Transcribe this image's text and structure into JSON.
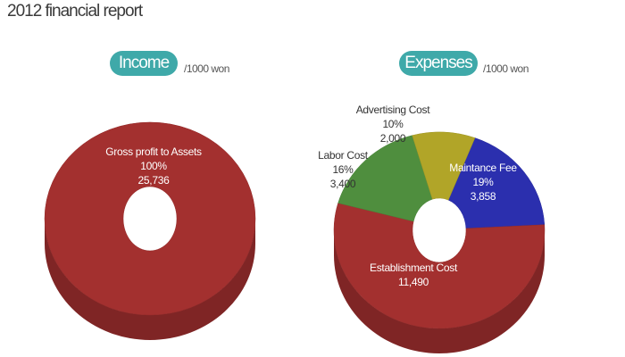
{
  "page_title": "2012 financial report",
  "colors": {
    "pill": "#3fa9a9",
    "income": "#a3302f",
    "establishment": "#a3302f",
    "maintenance": "#2b2fae",
    "labor": "#4f8e3e",
    "advertising": "#b1a528"
  },
  "chart_data": [
    {
      "type": "pie",
      "donut": true,
      "title": "Income",
      "unit": "/1000 won",
      "slices": [
        {
          "label": "Gross profit to Assets",
          "percent": "100%",
          "value": 25736,
          "value_text": "25,736"
        }
      ]
    },
    {
      "type": "pie",
      "donut": true,
      "title": "Expenses",
      "unit": "/1000 won",
      "slices": [
        {
          "label": "Maintance Fee",
          "percent": "19%",
          "value": 3858,
          "value_text": "3,858"
        },
        {
          "label": "Establishment Cost",
          "percent": "",
          "value": 11490,
          "value_text": "11,490"
        },
        {
          "label": "Labor Cost",
          "percent": "16%",
          "value": 3400,
          "value_text": "3,400"
        },
        {
          "label": "Advertising Cost",
          "percent": "10%",
          "value": 2000,
          "value_text": "2,000"
        }
      ]
    }
  ]
}
